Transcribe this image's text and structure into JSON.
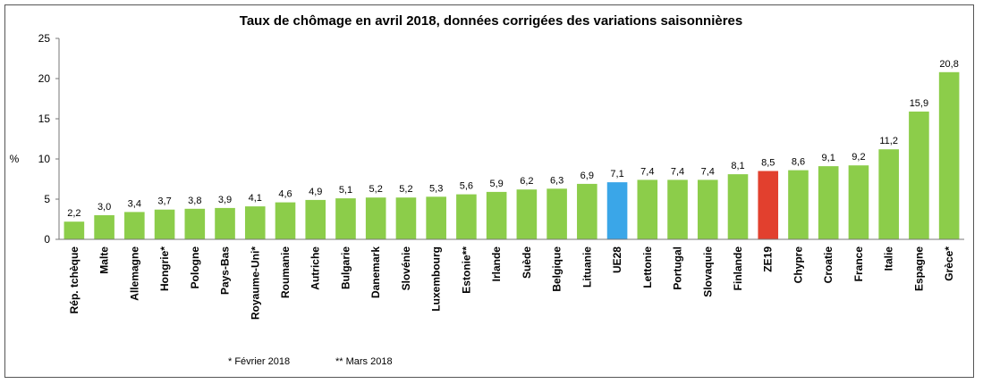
{
  "chart_data": {
    "type": "bar",
    "title": "Taux de chômage en avril 2018, données corrigées des variations saisonnières",
    "ylabel": "%",
    "ylim": [
      0,
      25
    ],
    "yticks": [
      0,
      5,
      10,
      15,
      20,
      25
    ],
    "grid": false,
    "legend": "none",
    "categories": [
      "Rép. tchèque",
      "Malte",
      "Allemagne",
      "Hongrie*",
      "Pologne",
      "Pays-Bas",
      "Royaume-Uni*",
      "Roumanie",
      "Autriche",
      "Bulgarie",
      "Danemark",
      "Slovénie",
      "Luxembourg",
      "Estonie**",
      "Irlande",
      "Suède",
      "Belgique",
      "Lituanie",
      "UE28",
      "Lettonie",
      "Portugal",
      "Slovaquie",
      "Finlande",
      "ZE19",
      "Chypre",
      "Croatie",
      "France",
      "Italie",
      "Espagne",
      "Grèce*"
    ],
    "values": [
      2.2,
      3.0,
      3.4,
      3.7,
      3.8,
      3.9,
      4.1,
      4.6,
      4.9,
      5.1,
      5.2,
      5.2,
      5.3,
      5.6,
      5.9,
      6.2,
      6.3,
      6.9,
      7.1,
      7.4,
      7.4,
      7.4,
      8.1,
      8.5,
      8.6,
      9.1,
      9.2,
      11.2,
      15.9,
      20.8
    ],
    "value_labels": [
      "2,2",
      "3,0",
      "3,4",
      "3,7",
      "3,8",
      "3,9",
      "4,1",
      "4,6",
      "4,9",
      "5,1",
      "5,2",
      "5,2",
      "5,3",
      "5,6",
      "5,9",
      "6,2",
      "6,3",
      "6,9",
      "7,1",
      "7,4",
      "7,4",
      "7,4",
      "8,1",
      "8,5",
      "8,6",
      "9,1",
      "9,2",
      "11,2",
      "15,9",
      "20,8"
    ],
    "colors": {
      "default": "#8ccd4a",
      "highlights": {
        "UE28": "#3aa6e8",
        "ZE19": "#e2402e"
      }
    },
    "footnotes": [
      "*  Février 2018",
      "** Mars 2018"
    ]
  }
}
